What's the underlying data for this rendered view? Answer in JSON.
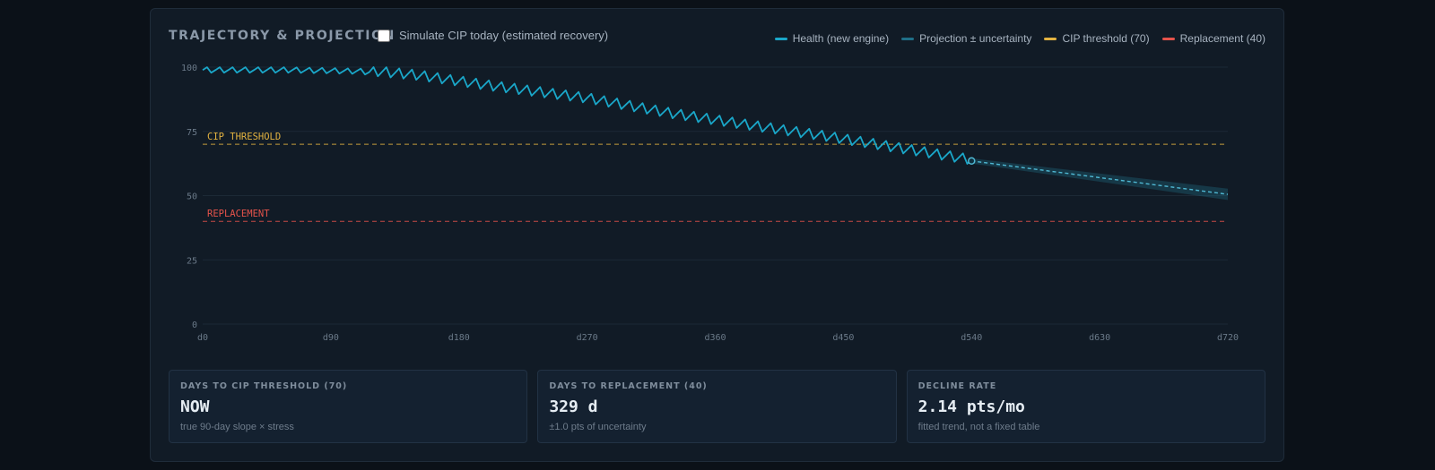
{
  "panel": {
    "title": "TRAJECTORY & PROJECTION",
    "simulate_label": "Simulate CIP today (estimated recovery)",
    "simulate_checked": false
  },
  "legend": [
    {
      "label": "Health (new engine)",
      "color": "#1aa7c9"
    },
    {
      "label": "Projection ± uncertainty",
      "color": "#1f6f87"
    },
    {
      "label": "CIP threshold (70)",
      "color": "#e3b341"
    },
    {
      "label": "Replacement (40)",
      "color": "#e5534b"
    }
  ],
  "chart_data": {
    "type": "line",
    "xlim": [
      0,
      720
    ],
    "ylim": [
      0,
      100
    ],
    "x_ticks": [
      "d0",
      "d90",
      "d180",
      "d270",
      "d360",
      "d450",
      "d540",
      "d630",
      "d720"
    ],
    "y_ticks": [
      "0",
      "25",
      "50",
      "75",
      "100"
    ],
    "grid": true,
    "legend_position": "top-right",
    "health_series": {
      "name": "Health (new engine)",
      "color": "#1aa7c9",
      "day_step": 3,
      "zigzag_amplitude": 2.2,
      "zigzag_period_days": 9,
      "trend_points": [
        [
          0,
          99.5
        ],
        [
          60,
          99.5
        ],
        [
          110,
          99
        ],
        [
          150,
          97
        ],
        [
          200,
          93
        ],
        [
          270,
          88
        ],
        [
          330,
          82
        ],
        [
          390,
          77
        ],
        [
          440,
          73
        ],
        [
          490,
          68.5
        ],
        [
          540,
          64
        ]
      ]
    },
    "projection_series": {
      "name": "Projection ± uncertainty",
      "color": "#4fb8d3",
      "band_color": "#1f6f87",
      "start": [
        540,
        63.5
      ],
      "end": [
        720,
        50.5
      ],
      "uncertainty_start": 1.0,
      "uncertainty_end": 2.2
    },
    "thresholds": [
      {
        "value": 70,
        "label": "CIP THRESHOLD",
        "color": "#e3b341"
      },
      {
        "value": 40,
        "label": "REPLACEMENT",
        "color": "#e5534b"
      }
    ]
  },
  "cards": [
    {
      "label": "DAYS TO CIP THRESHOLD (70)",
      "value": "NOW",
      "sub": "true 90-day slope × stress"
    },
    {
      "label": "DAYS TO REPLACEMENT (40)",
      "value": "329 d",
      "sub": "±1.0 pts of uncertainty"
    },
    {
      "label": "DECLINE RATE",
      "value": "2.14 pts/mo",
      "sub": "fitted trend, not a fixed table"
    }
  ]
}
